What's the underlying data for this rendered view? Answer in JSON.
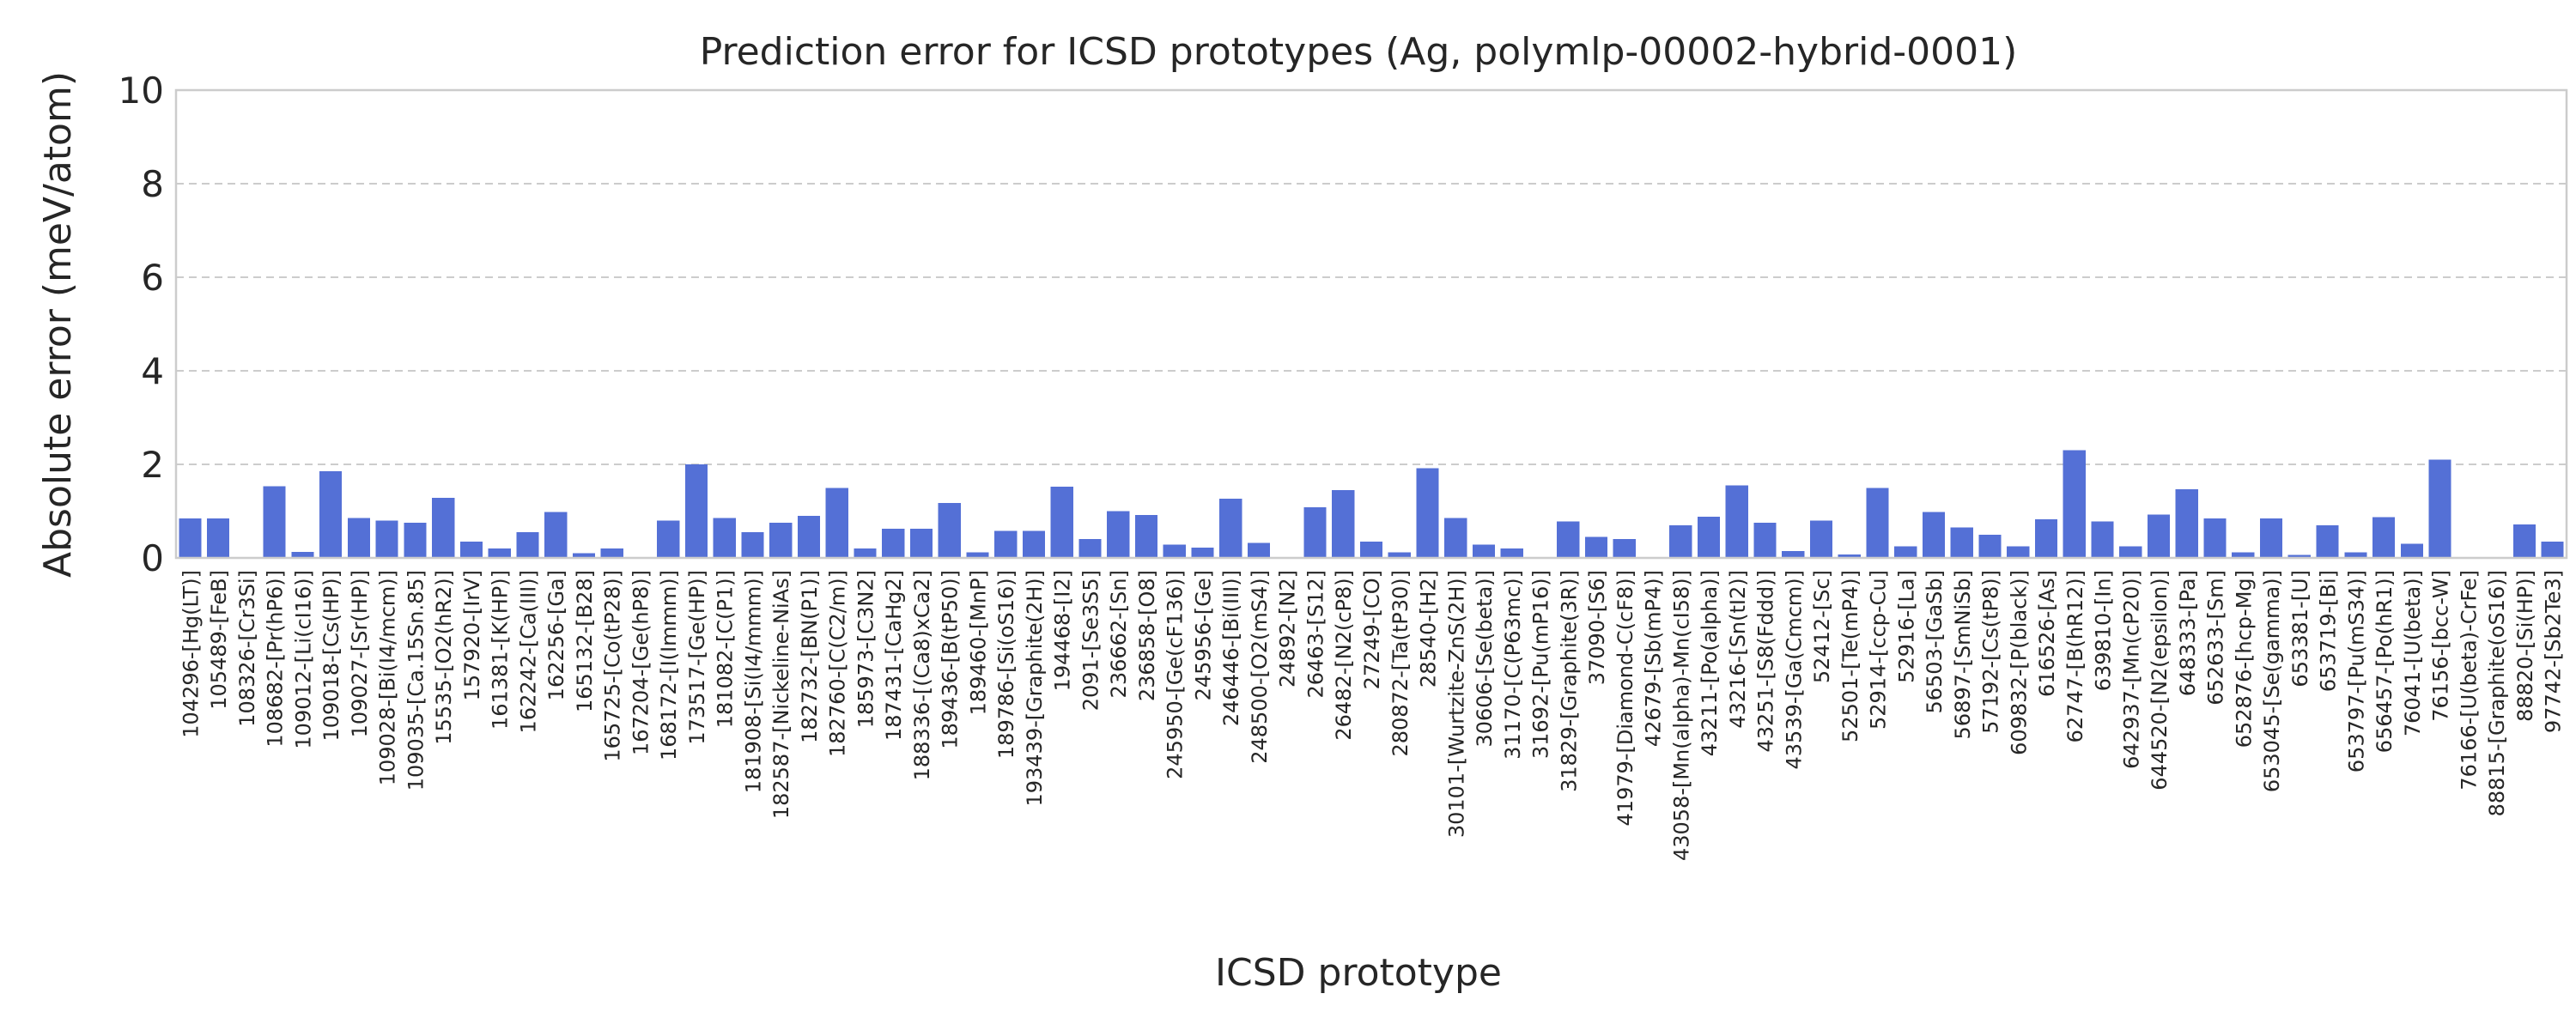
{
  "chart_data": {
    "type": "bar",
    "title": "Prediction error for ICSD prototypes (Ag, polymlp-00002-hybrid-0001)",
    "xlabel": "ICSD prototype",
    "ylabel": "Absolute error (meV/atom)",
    "ylim": [
      0,
      10
    ],
    "yticks": [
      0,
      2,
      4,
      6,
      8,
      10
    ],
    "grid": "horizontal dashed",
    "bar_color": "#5470d6",
    "categories": [
      "104296-[Hg(LT)]",
      "105489-[FeB]",
      "108326-[Cr3Si]",
      "108682-[Pr(hP6)]",
      "109012-[Li(cI16)]",
      "109018-[Cs(HP)]",
      "109027-[Sr(HP)]",
      "109028-[Bi(I4/mcm)]",
      "109035-[Ca.15Sn.85]",
      "15535-[O2(hR2)]",
      "157920-[IrV]",
      "161381-[K(HP)]",
      "162242-[Ca(III)]",
      "162256-[Ga]",
      "165132-[B28]",
      "165725-[Co(tP28)]",
      "167204-[Ge(hP8)]",
      "168172-[I(Immm)]",
      "173517-[Ge(HP)]",
      "181082-[C(P1)]",
      "181908-[Si(I4/mmm)]",
      "182587-[Nickeline-NiAs]",
      "182732-[BN(P1)]",
      "182760-[C(C2/m)]",
      "185973-[C3N2]",
      "187431-[CaHg2]",
      "188336-[(Ca8)xCa2]",
      "189436-[B(tP50)]",
      "189460-[MnP]",
      "189786-[Si(oS16)]",
      "193439-[Graphite(2H)]",
      "194468-[I2]",
      "2091-[Se3S5]",
      "236662-[Sn]",
      "236858-[O8]",
      "245950-[Ge(cF136)]",
      "245956-[Ge]",
      "246446-[Bi(III)]",
      "248500-[O2(mS4)]",
      "24892-[N2]",
      "26463-[S12]",
      "26482-[N2(cP8)]",
      "27249-[CO]",
      "280872-[Ta(tP30)]",
      "28540-[H2]",
      "30101-[Wurtzite-ZnS(2H)]",
      "30606-[Se(beta)]",
      "31170-[C(P63mc)]",
      "31692-[Pu(mP16)]",
      "31829-[Graphite(3R)]",
      "37090-[S6]",
      "41979-[Diamond-C(cF8)]",
      "42679-[Sb(mP4)]",
      "43058-[Mn(alpha)-Mn(cI58)]",
      "43211-[Po(alpha)]",
      "43216-[Sn(tI2)]",
      "43251-[S8(Fddd)]",
      "43539-[Ga(Cmcm)]",
      "52412-[Sc]",
      "52501-[Te(mP4)]",
      "52914-[ccp-Cu]",
      "52916-[La]",
      "56503-[GaSb]",
      "56897-[SmNiSb]",
      "57192-[Cs(tP8)]",
      "609832-[P(black)]",
      "616526-[As]",
      "62747-[B(hR12)]",
      "639810-[In]",
      "642937-[Mn(cP20)]",
      "644520-[N2(epsilon)]",
      "648333-[Pa]",
      "652633-[Sm]",
      "652876-[hcp-Mg]",
      "653045-[Se(gamma)]",
      "653381-[U]",
      "653719-[Bi]",
      "653797-[Pu(mS34)]",
      "656457-[Po(hR1)]",
      "76041-[U(beta)]",
      "76156-[bcc-W]",
      "76166-[U(beta)-CrFe]",
      "88815-[Graphite(oS16)]",
      "88820-[Si(HP)]",
      "97742-[Sb2Te3]"
    ],
    "values": [
      0.84,
      0.84,
      0.0,
      1.53,
      0.13,
      1.85,
      0.85,
      0.8,
      0.75,
      1.28,
      0.35,
      0.2,
      0.55,
      0.98,
      0.1,
      0.2,
      0.0,
      0.8,
      2.0,
      0.85,
      0.55,
      0.75,
      0.9,
      1.5,
      0.2,
      0.62,
      0.62,
      1.17,
      0.12,
      0.58,
      0.58,
      1.52,
      0.4,
      1.0,
      0.92,
      0.28,
      0.22,
      1.27,
      0.32,
      0.0,
      1.08,
      1.45,
      0.35,
      0.12,
      1.92,
      0.85,
      0.28,
      0.2,
      0.0,
      0.78,
      0.45,
      0.4,
      0.0,
      0.7,
      0.88,
      1.55,
      0.75,
      0.15,
      0.8,
      0.07,
      1.5,
      0.25,
      0.98,
      0.65,
      0.5,
      0.25,
      0.83,
      2.3,
      0.78,
      0.25,
      0.93,
      1.47,
      0.84,
      0.12,
      0.84,
      0.06,
      0.7,
      0.12,
      0.87,
      0.3,
      2.1,
      0.0,
      0.0,
      0.72,
      0.35
    ]
  }
}
